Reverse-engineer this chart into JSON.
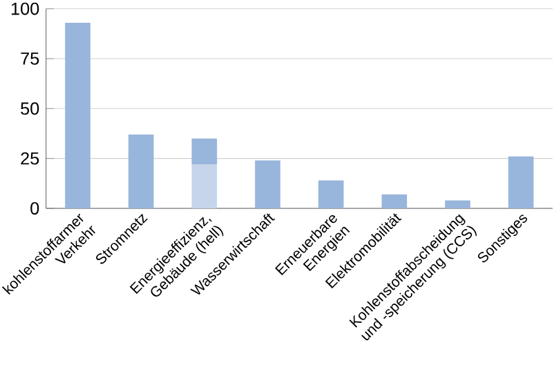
{
  "chart_data": {
    "type": "bar",
    "stacked": true,
    "categories": [
      "kohlenstoffarmer\nVerkehr",
      "Stromnetz",
      "Energieeffizienz,\nGebäude (hell)",
      "Wasserwirtschaft",
      "Erneuerbare\nEnergien",
      "Elektromobilität",
      "Kohlenstoffabscheidung\nund -speicherung (CCS)",
      "Sonstiges"
    ],
    "series": [
      {
        "color": "#c6d5ea",
        "values": [
          null,
          null,
          22,
          null,
          null,
          null,
          null,
          null
        ]
      },
      {
        "color": "#98b5dc",
        "values": [
          93,
          37,
          13,
          24,
          14,
          7,
          4,
          26
        ]
      }
    ],
    "ylim": [
      0,
      100
    ],
    "yticks": [
      0,
      25,
      50,
      75,
      100
    ],
    "grid": "y"
  }
}
